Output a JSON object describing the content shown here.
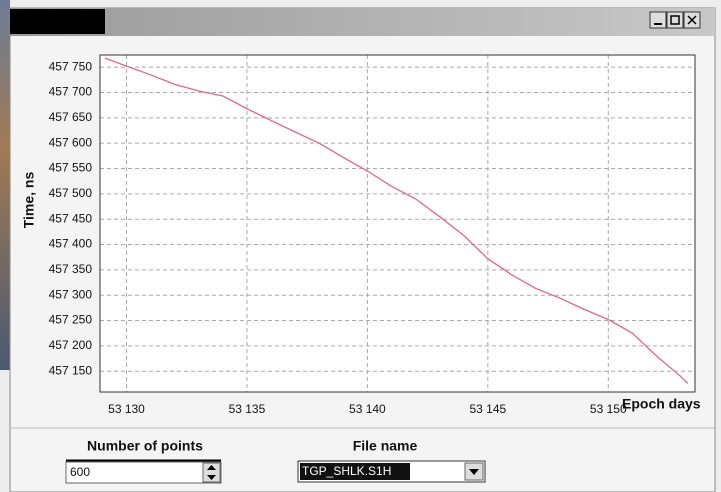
{
  "chart_data": {
    "type": "line",
    "x_label": "Epoch days",
    "y_label": "Time, ns",
    "x": [
      53129.1,
      53130,
      53131,
      53132,
      53133,
      53134,
      53135,
      53136,
      53137,
      53138,
      53139,
      53140,
      53141,
      53142,
      53143,
      53144,
      53145,
      53146,
      53147,
      53148,
      53149,
      53150,
      53151,
      53152,
      53153,
      53153.3
    ],
    "values": [
      457768,
      457752,
      457735,
      457716,
      457703,
      457693,
      457668,
      457645,
      457622,
      457600,
      457572,
      457545,
      457515,
      457490,
      457455,
      457418,
      457372,
      457340,
      457313,
      457294,
      457272,
      457252,
      457225,
      457180,
      457140,
      457126
    ],
    "color": "#e0668a",
    "xlim": [
      53128.9,
      53153.6
    ],
    "ylim": [
      457109,
      457774
    ],
    "xticks": [
      {
        "value": 53130,
        "label": "53 130"
      },
      {
        "value": 53135,
        "label": "53 135"
      },
      {
        "value": 53140,
        "label": "53 140"
      },
      {
        "value": 53145,
        "label": "53 145"
      },
      {
        "value": 53150,
        "label": "53 150"
      }
    ],
    "yticks": [
      {
        "value": 457150,
        "label": "457 150"
      },
      {
        "value": 457200,
        "label": "457 200"
      },
      {
        "value": 457250,
        "label": "457 250"
      },
      {
        "value": 457300,
        "label": "457 300"
      },
      {
        "value": 457350,
        "label": "457 350"
      },
      {
        "value": 457400,
        "label": "457 400"
      },
      {
        "value": 457450,
        "label": "457 450"
      },
      {
        "value": 457500,
        "label": "457 500"
      },
      {
        "value": 457550,
        "label": "457 550"
      },
      {
        "value": 457600,
        "label": "457 600"
      },
      {
        "value": 457650,
        "label": "457 650"
      },
      {
        "value": 457700,
        "label": "457 700"
      },
      {
        "value": 457750,
        "label": "457 750"
      }
    ],
    "grid": true
  },
  "controls": {
    "points_label": "Number of points",
    "points_value": "600",
    "file_label": "File name",
    "file_value": "TGP_SHLK.S1H"
  }
}
